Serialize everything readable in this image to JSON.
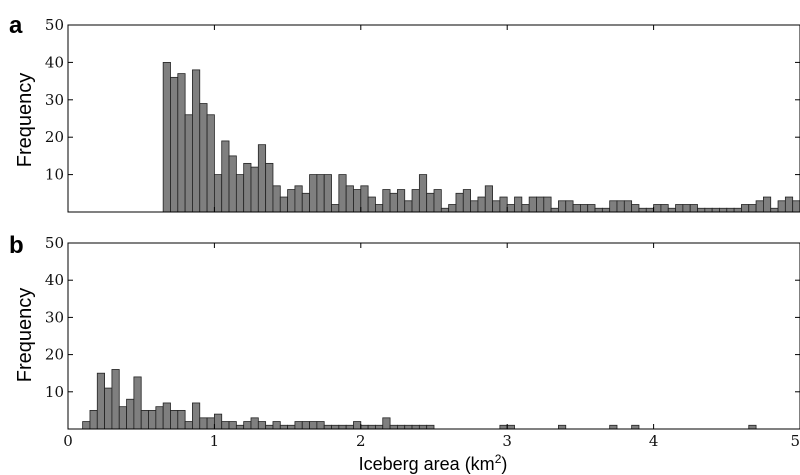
{
  "chart_data": [
    {
      "type": "bar",
      "panel": "a",
      "ylabel": "Frequency",
      "xlabel": "",
      "xlim": [
        0,
        5
      ],
      "ylim": [
        0,
        50
      ],
      "yticks": [
        10,
        20,
        30,
        40,
        50
      ],
      "xticks": [],
      "bin_width": 0.05,
      "x": [
        0.675,
        0.725,
        0.775,
        0.825,
        0.875,
        0.925,
        0.975,
        1.025,
        1.075,
        1.125,
        1.175,
        1.225,
        1.275,
        1.325,
        1.375,
        1.425,
        1.475,
        1.525,
        1.575,
        1.625,
        1.675,
        1.725,
        1.775,
        1.825,
        1.875,
        1.925,
        1.975,
        2.025,
        2.075,
        2.125,
        2.175,
        2.225,
        2.275,
        2.325,
        2.375,
        2.425,
        2.475,
        2.525,
        2.575,
        2.625,
        2.675,
        2.725,
        2.775,
        2.825,
        2.875,
        2.925,
        2.975,
        3.025,
        3.075,
        3.125,
        3.175,
        3.225,
        3.275,
        3.325,
        3.375,
        3.425,
        3.475,
        3.525,
        3.575,
        3.625,
        3.675,
        3.725,
        3.775,
        3.825,
        3.875,
        3.925,
        3.975,
        4.025,
        4.075,
        4.125,
        4.175,
        4.225,
        4.275,
        4.325,
        4.375,
        4.425,
        4.475,
        4.525,
        4.575,
        4.625,
        4.675,
        4.725,
        4.775,
        4.825,
        4.875,
        4.925,
        4.975
      ],
      "values": [
        40,
        36,
        37,
        26,
        38,
        29,
        26,
        10,
        19,
        15,
        10,
        13,
        12,
        18,
        13,
        7,
        4,
        6,
        7,
        5,
        10,
        10,
        10,
        2,
        10,
        7,
        6,
        7,
        4,
        2,
        6,
        5,
        6,
        3,
        6,
        10,
        5,
        6,
        1,
        2,
        5,
        6,
        3,
        4,
        7,
        3,
        4,
        2,
        4,
        2,
        4,
        4,
        4,
        1,
        3,
        3,
        2,
        2,
        2,
        1,
        1,
        3,
        3,
        3,
        2,
        1,
        1,
        2,
        2,
        1,
        2,
        2,
        2,
        1,
        1,
        1,
        1,
        1,
        1,
        2,
        2,
        3,
        4,
        1,
        3,
        4,
        3
      ]
    },
    {
      "type": "bar",
      "panel": "b",
      "ylabel": "Frequency",
      "xlabel": "Iceberg area (km",
      "xlabel_sup": "2",
      "xlabel_end": ")",
      "xlim": [
        0,
        5
      ],
      "ylim": [
        0,
        50
      ],
      "yticks": [
        10,
        20,
        30,
        40,
        50
      ],
      "xticks": [
        0,
        1,
        2,
        3,
        4,
        5
      ],
      "bin_width": 0.05,
      "x": [
        0.125,
        0.175,
        0.225,
        0.275,
        0.325,
        0.375,
        0.425,
        0.475,
        0.525,
        0.575,
        0.625,
        0.675,
        0.725,
        0.775,
        0.825,
        0.875,
        0.925,
        0.975,
        1.025,
        1.075,
        1.125,
        1.175,
        1.225,
        1.275,
        1.325,
        1.375,
        1.425,
        1.475,
        1.525,
        1.575,
        1.625,
        1.675,
        1.725,
        1.775,
        1.825,
        1.875,
        1.925,
        1.975,
        2.025,
        2.075,
        2.125,
        2.175,
        2.225,
        2.275,
        2.325,
        2.375,
        2.425,
        2.475,
        2.975,
        3.025,
        3.375,
        3.725,
        3.875,
        4.675
      ],
      "values": [
        2,
        5,
        15,
        11,
        16,
        6,
        8,
        14,
        5,
        5,
        6,
        7,
        5,
        5,
        2,
        7,
        3,
        3,
        4,
        2,
        2,
        1,
        2,
        3,
        2,
        1,
        2,
        1,
        1,
        2,
        2,
        2,
        2,
        1,
        1,
        1,
        1,
        2,
        1,
        1,
        1,
        3,
        1,
        1,
        1,
        1,
        1,
        1,
        1,
        1,
        1,
        1,
        1,
        1
      ]
    }
  ],
  "panels": {
    "a": {
      "letter": "a",
      "ylabel": "Frequency"
    },
    "b": {
      "letter": "b",
      "ylabel": "Frequency"
    }
  }
}
